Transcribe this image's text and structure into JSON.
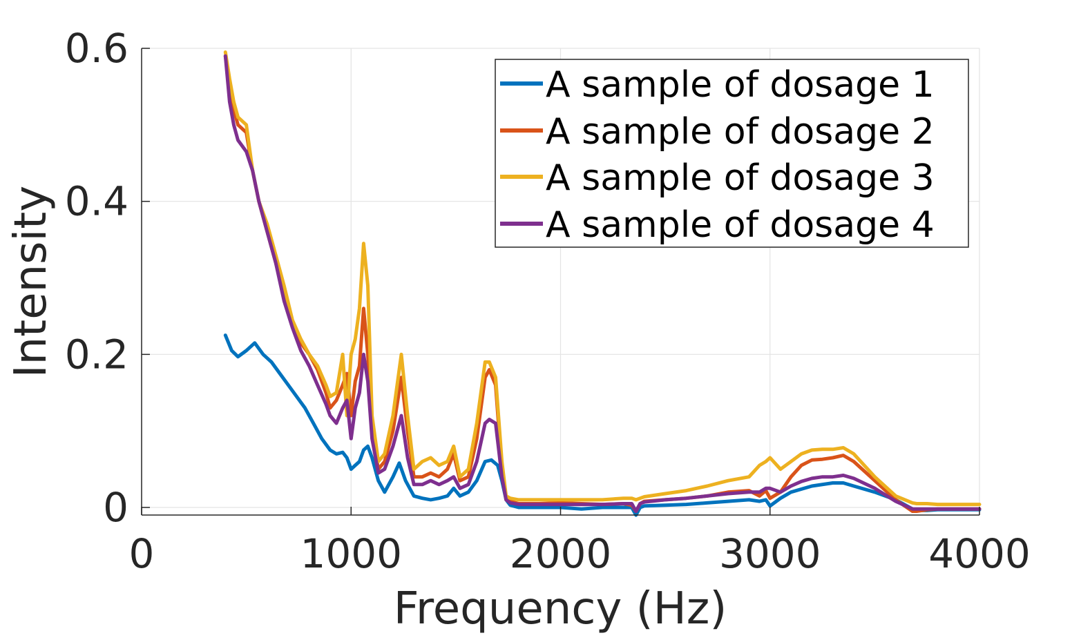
{
  "chart_data": {
    "type": "line",
    "xlabel": "Frequency (Hz)",
    "ylabel": "Intensity",
    "xlim": [
      0,
      4000
    ],
    "ylim": [
      -0.01,
      0.6
    ],
    "xticks": [
      0,
      1000,
      2000,
      3000,
      4000
    ],
    "xtick_labels": [
      "0",
      "1000",
      "2000",
      "3000",
      "4000"
    ],
    "yticks": [
      0,
      0.2,
      0.4,
      0.6
    ],
    "ytick_labels": [
      "0",
      "0.2",
      "0.4",
      "0.6"
    ],
    "grid": true,
    "legend_position": "top-right",
    "series": [
      {
        "name": "A sample of dosage 1",
        "color": "#0072BD",
        "x": [
          400,
          430,
          460,
          500,
          540,
          580,
          620,
          660,
          700,
          740,
          780,
          820,
          860,
          900,
          930,
          960,
          980,
          1000,
          1020,
          1040,
          1060,
          1080,
          1100,
          1130,
          1160,
          1200,
          1230,
          1260,
          1300,
          1340,
          1380,
          1420,
          1460,
          1490,
          1520,
          1560,
          1600,
          1640,
          1670,
          1700,
          1720,
          1740,
          1760,
          1800,
          1900,
          2000,
          2100,
          2200,
          2300,
          2340,
          2360,
          2380,
          2400,
          2500,
          2600,
          2700,
          2800,
          2900,
          2950,
          2980,
          3000,
          3050,
          3100,
          3200,
          3300,
          3350,
          3400,
          3500,
          3600,
          3680,
          3700,
          3750,
          3800,
          3900,
          4000
        ],
        "y": [
          0.225,
          0.205,
          0.197,
          0.205,
          0.215,
          0.2,
          0.19,
          0.175,
          0.16,
          0.145,
          0.13,
          0.11,
          0.09,
          0.075,
          0.07,
          0.072,
          0.065,
          0.05,
          0.055,
          0.06,
          0.075,
          0.08,
          0.065,
          0.035,
          0.02,
          0.04,
          0.058,
          0.035,
          0.015,
          0.012,
          0.01,
          0.012,
          0.015,
          0.025,
          0.015,
          0.02,
          0.035,
          0.06,
          0.062,
          0.055,
          0.035,
          0.01,
          0.003,
          0.0,
          0.0,
          0.0,
          -0.002,
          0.0,
          0.0,
          0.0,
          -0.01,
          0.0,
          0.002,
          0.003,
          0.004,
          0.006,
          0.008,
          0.01,
          0.008,
          0.01,
          0.002,
          0.012,
          0.02,
          0.028,
          0.032,
          0.032,
          0.028,
          0.02,
          0.01,
          -0.002,
          -0.004,
          -0.004,
          -0.003,
          -0.003,
          -0.003
        ]
      },
      {
        "name": "A sample of dosage 2",
        "color": "#D95319",
        "x": [
          400,
          420,
          440,
          460,
          500,
          530,
          560,
          600,
          640,
          680,
          720,
          760,
          800,
          840,
          880,
          900,
          930,
          960,
          980,
          1000,
          1020,
          1040,
          1060,
          1080,
          1100,
          1130,
          1160,
          1200,
          1240,
          1270,
          1300,
          1340,
          1380,
          1420,
          1460,
          1490,
          1520,
          1560,
          1600,
          1640,
          1660,
          1690,
          1720,
          1740,
          1760,
          1800,
          1900,
          2000,
          2100,
          2200,
          2300,
          2340,
          2360,
          2380,
          2400,
          2500,
          2600,
          2700,
          2800,
          2900,
          2950,
          2980,
          3000,
          3050,
          3100,
          3150,
          3200,
          3250,
          3300,
          3350,
          3400,
          3500,
          3600,
          3680,
          3700,
          3750,
          3800,
          3900,
          4000
        ],
        "y": [
          0.59,
          0.55,
          0.52,
          0.5,
          0.49,
          0.44,
          0.4,
          0.36,
          0.32,
          0.28,
          0.24,
          0.215,
          0.2,
          0.18,
          0.15,
          0.13,
          0.14,
          0.16,
          0.175,
          0.12,
          0.165,
          0.185,
          0.26,
          0.2,
          0.1,
          0.05,
          0.06,
          0.1,
          0.17,
          0.1,
          0.04,
          0.04,
          0.045,
          0.04,
          0.05,
          0.07,
          0.035,
          0.04,
          0.09,
          0.17,
          0.18,
          0.16,
          0.05,
          0.01,
          0.008,
          0.005,
          0.005,
          0.006,
          0.005,
          0.004,
          0.005,
          0.003,
          -0.005,
          0.005,
          0.008,
          0.01,
          0.012,
          0.015,
          0.02,
          0.022,
          0.015,
          0.022,
          0.012,
          0.02,
          0.04,
          0.055,
          0.062,
          0.063,
          0.065,
          0.068,
          0.06,
          0.035,
          0.01,
          -0.005,
          -0.005,
          -0.003,
          -0.002,
          -0.002,
          -0.002
        ]
      },
      {
        "name": "A sample of dosage 3",
        "color": "#EDB120",
        "x": [
          400,
          420,
          440,
          460,
          500,
          530,
          560,
          600,
          640,
          680,
          720,
          760,
          800,
          840,
          880,
          900,
          930,
          960,
          980,
          1000,
          1020,
          1040,
          1060,
          1080,
          1100,
          1130,
          1160,
          1200,
          1240,
          1270,
          1300,
          1340,
          1380,
          1420,
          1460,
          1490,
          1520,
          1560,
          1600,
          1640,
          1660,
          1690,
          1720,
          1740,
          1760,
          1800,
          1900,
          2000,
          2100,
          2200,
          2300,
          2340,
          2360,
          2380,
          2400,
          2500,
          2600,
          2700,
          2800,
          2900,
          2950,
          2980,
          3000,
          3050,
          3100,
          3150,
          3200,
          3250,
          3300,
          3350,
          3400,
          3500,
          3600,
          3680,
          3700,
          3750,
          3800,
          3900,
          4000
        ],
        "y": [
          0.595,
          0.56,
          0.53,
          0.51,
          0.5,
          0.44,
          0.4,
          0.37,
          0.33,
          0.29,
          0.245,
          0.22,
          0.2,
          0.185,
          0.16,
          0.145,
          0.15,
          0.2,
          0.12,
          0.2,
          0.22,
          0.26,
          0.345,
          0.29,
          0.12,
          0.06,
          0.07,
          0.12,
          0.2,
          0.12,
          0.05,
          0.06,
          0.065,
          0.055,
          0.06,
          0.08,
          0.04,
          0.05,
          0.11,
          0.19,
          0.19,
          0.17,
          0.06,
          0.015,
          0.012,
          0.01,
          0.01,
          0.01,
          0.01,
          0.01,
          0.012,
          0.012,
          0.01,
          0.012,
          0.014,
          0.018,
          0.022,
          0.028,
          0.035,
          0.04,
          0.055,
          0.06,
          0.065,
          0.05,
          0.06,
          0.07,
          0.075,
          0.076,
          0.076,
          0.078,
          0.07,
          0.04,
          0.015,
          0.006,
          0.005,
          0.005,
          0.004,
          0.004,
          0.004
        ]
      },
      {
        "name": "A sample of dosage 4",
        "color": "#7E2F8E",
        "x": [
          400,
          420,
          440,
          460,
          500,
          530,
          560,
          600,
          640,
          680,
          720,
          760,
          800,
          840,
          880,
          900,
          930,
          960,
          980,
          1000,
          1020,
          1040,
          1060,
          1080,
          1100,
          1130,
          1160,
          1200,
          1240,
          1270,
          1300,
          1340,
          1380,
          1420,
          1460,
          1490,
          1520,
          1560,
          1600,
          1640,
          1660,
          1690,
          1720,
          1740,
          1760,
          1800,
          1900,
          2000,
          2100,
          2200,
          2300,
          2340,
          2360,
          2380,
          2400,
          2500,
          2600,
          2700,
          2800,
          2900,
          2950,
          2980,
          3000,
          3050,
          3100,
          3150,
          3200,
          3250,
          3300,
          3350,
          3400,
          3500,
          3600,
          3680,
          3700,
          3750,
          3800,
          3900,
          4000
        ],
        "y": [
          0.59,
          0.53,
          0.5,
          0.48,
          0.465,
          0.44,
          0.4,
          0.36,
          0.32,
          0.27,
          0.235,
          0.205,
          0.185,
          0.16,
          0.135,
          0.12,
          0.11,
          0.13,
          0.14,
          0.09,
          0.13,
          0.15,
          0.2,
          0.165,
          0.09,
          0.045,
          0.05,
          0.08,
          0.12,
          0.065,
          0.03,
          0.03,
          0.035,
          0.03,
          0.035,
          0.04,
          0.025,
          0.03,
          0.06,
          0.11,
          0.115,
          0.11,
          0.04,
          0.01,
          0.006,
          0.004,
          0.004,
          0.004,
          0.004,
          0.004,
          0.005,
          0.005,
          -0.005,
          0.005,
          0.007,
          0.01,
          0.012,
          0.015,
          0.018,
          0.02,
          0.02,
          0.025,
          0.025,
          0.02,
          0.028,
          0.034,
          0.038,
          0.04,
          0.04,
          0.042,
          0.038,
          0.025,
          0.008,
          -0.002,
          -0.002,
          -0.002,
          -0.002,
          -0.002,
          -0.002
        ]
      }
    ]
  }
}
